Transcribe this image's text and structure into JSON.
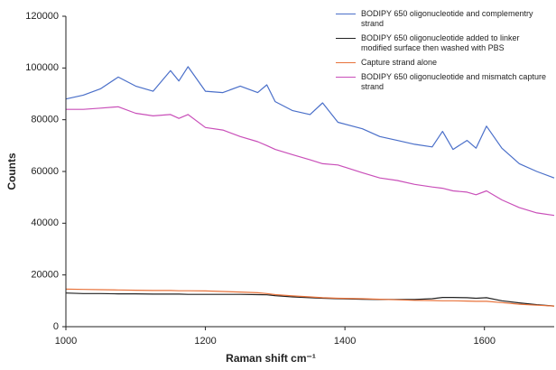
{
  "chart_data": {
    "type": "line",
    "x_label": "Raman shift cm⁻¹",
    "y_label": "Counts",
    "x": [
      1000,
      1025,
      1050,
      1075,
      1100,
      1125,
      1150,
      1162,
      1175,
      1200,
      1225,
      1250,
      1275,
      1288,
      1300,
      1325,
      1350,
      1368,
      1390,
      1425,
      1450,
      1475,
      1500,
      1525,
      1540,
      1555,
      1575,
      1588,
      1603,
      1625,
      1650,
      1675,
      1700
    ],
    "series": [
      {
        "name": "BODIPY 650 oligonucleotide and complementry strand",
        "color": "#4a6fc9",
        "values": [
          88000,
          89500,
          92000,
          96500,
          93000,
          91000,
          99000,
          95000,
          100500,
          91000,
          90500,
          93000,
          90500,
          93500,
          87000,
          83500,
          82000,
          86500,
          79000,
          76500,
          73500,
          72000,
          70500,
          69500,
          75500,
          68500,
          72000,
          69000,
          77500,
          69000,
          63000,
          60000,
          57500
        ]
      },
      {
        "name": "BODIPY 650 oligonucleotide added to linker modified surface then washed with PBS",
        "color": "#222222",
        "values": [
          13000,
          12800,
          12800,
          12700,
          12700,
          12600,
          12600,
          12600,
          12500,
          12500,
          12500,
          12500,
          12400,
          12300,
          12000,
          11500,
          11200,
          11000,
          10800,
          10600,
          10500,
          10500,
          10500,
          10800,
          11300,
          11300,
          11200,
          11000,
          11200,
          10000,
          9200,
          8500,
          8000
        ]
      },
      {
        "name": "Capture strand alone",
        "color": "#e8723a",
        "values": [
          14500,
          14400,
          14300,
          14200,
          14100,
          14000,
          14000,
          13900,
          13900,
          13800,
          13600,
          13400,
          13100,
          12800,
          12400,
          11900,
          11500,
          11200,
          11000,
          10800,
          10600,
          10400,
          10200,
          10100,
          10000,
          10000,
          9900,
          9800,
          9800,
          9300,
          8700,
          8300,
          8000
        ]
      },
      {
        "name": "BODIPY 650 oligonucleotide and mismatch capture strand",
        "color": "#c94fb9",
        "values": [
          84000,
          84000,
          84500,
          85000,
          82500,
          81500,
          82000,
          80500,
          82000,
          77000,
          76000,
          73500,
          71500,
          70000,
          68500,
          66500,
          64500,
          63000,
          62500,
          59500,
          57500,
          56500,
          55000,
          54000,
          53500,
          52500,
          52000,
          51000,
          52500,
          49000,
          46000,
          44000,
          43000
        ]
      }
    ],
    "xlim": [
      1000,
      1700
    ],
    "xticks": [
      1000,
      1200,
      1400,
      1600
    ],
    "ylim": [
      0,
      120000
    ],
    "yticks": [
      0,
      20000,
      40000,
      60000,
      80000,
      100000,
      120000
    ],
    "grid": false,
    "legend": "top-right"
  }
}
